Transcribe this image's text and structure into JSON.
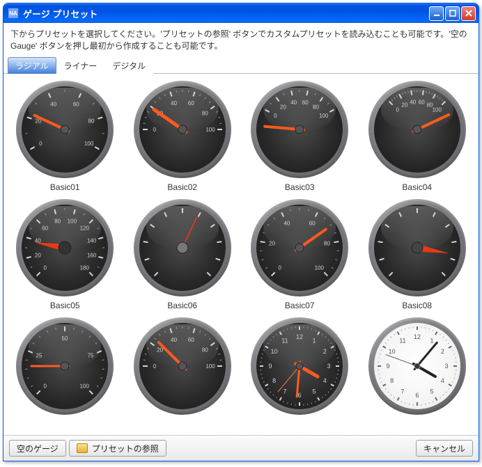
{
  "window": {
    "title": "ゲージ プリセット"
  },
  "instructions": "下からプリセットを選択してください。'プリセットの参照' ボタンでカスタムプリセットを読み込むことも可能です。'空の Gauge' ボタンを押し最初から作成することも可能です。",
  "tabs": [
    {
      "label": "ラジアル",
      "active": true
    },
    {
      "label": "ライナー",
      "active": false
    },
    {
      "label": "デジタル",
      "active": false
    }
  ],
  "buttons": {
    "empty": "空のゲージ",
    "browse": "プリセットの参照",
    "cancel": "キャンセル"
  },
  "colors": {
    "needle": "#ff5a1f",
    "needle2": "#e63a16",
    "tick": "#d6d6d6",
    "tickMinor": "#9a9a9a",
    "tickLabel": "#d0d0d0",
    "hubDark": "#404040",
    "hubLight": "#888888",
    "clockHand": "#222222",
    "clockFace": "#ffffff"
  },
  "presets": [
    {
      "id": "Basic01",
      "label": "Basic01",
      "face": "dark",
      "scale": {
        "start": 150,
        "end": 30,
        "min": 0,
        "max": 100,
        "majorStep": 20,
        "minorPerMajor": 2,
        "labels": true
      },
      "needles": [
        {
          "angle": 205,
          "len": 48,
          "width": 4,
          "color": "#ff5a1f"
        }
      ],
      "hub": {
        "r": 6,
        "fill": "#555"
      }
    },
    {
      "id": "Basic02",
      "label": "Basic02",
      "face": "dark",
      "scale": {
        "start": 180,
        "end": 0,
        "min": 0,
        "max": 100,
        "majorStep": 20,
        "minorPerMajor": 4,
        "labels": true
      },
      "needles": [
        {
          "angle": 215,
          "len": 50,
          "width": 5,
          "color": "#ff5a1f"
        }
      ],
      "hub": {
        "r": 6,
        "fill": "#555"
      }
    },
    {
      "id": "Basic03",
      "label": "Basic03",
      "face": "dark",
      "scale": {
        "start": 210,
        "end": 330,
        "min": 0,
        "max": 100,
        "majorStep": 20,
        "minorPerMajor": 2,
        "labels": true
      },
      "needles": [
        {
          "angle": 185,
          "len": 50,
          "width": 4,
          "color": "#ff5a1f"
        }
      ],
      "hub": {
        "r": 6,
        "fill": "#555"
      }
    },
    {
      "id": "Basic04",
      "label": "Basic04",
      "face": "dark",
      "scale": {
        "start": 225,
        "end": 315,
        "min": 0,
        "max": 100,
        "majorStep": 20,
        "minorPerMajor": 4,
        "labels": true
      },
      "needles": [
        {
          "angle": 335,
          "len": 50,
          "width": 4,
          "color": "#ff5a1f"
        }
      ],
      "hub": {
        "r": 6,
        "fill": "#555"
      }
    },
    {
      "id": "Basic05",
      "label": "Basic05",
      "face": "dark",
      "scale": {
        "start": 135,
        "end": 45,
        "min": 0,
        "max": 180,
        "majorStep": 20,
        "minorPerMajor": 2,
        "labels": true
      },
      "needles": [
        {
          "angle": 190,
          "len": 44,
          "width": 8,
          "color": "#e63a16",
          "style": "wedge"
        }
      ],
      "hub": {
        "r": 9,
        "fill": "#333"
      }
    },
    {
      "id": "Basic06",
      "label": "Basic06",
      "face": "dark",
      "scale": {
        "start": 135,
        "end": 45,
        "min": 0,
        "max": 100,
        "majorStep": 10,
        "minorPerMajor": 1,
        "labels": false
      },
      "needles": [
        {
          "angle": 295,
          "len": 48,
          "width": 2,
          "color": "#d43a1f"
        }
      ],
      "hub": {
        "r": 8,
        "fill": "#777"
      }
    },
    {
      "id": "Basic07",
      "label": "Basic07",
      "face": "dark",
      "scale": {
        "start": 135,
        "end": 45,
        "min": 0,
        "max": 100,
        "majorStep": 20,
        "minorPerMajor": 4,
        "labels": true
      },
      "needles": [
        {
          "angle": 325,
          "len": 46,
          "width": 4,
          "color": "#ff5a1f"
        }
      ],
      "hub": {
        "r": 6,
        "fill": "#555"
      }
    },
    {
      "id": "Basic08",
      "label": "Basic08",
      "face": "dark",
      "scale": {
        "start": 135,
        "end": 45,
        "min": 0,
        "max": 100,
        "majorStep": 10,
        "minorPerMajor": 1,
        "labels": false
      },
      "needles": [
        {
          "angle": 10,
          "len": 46,
          "width": 10,
          "color": "#e63a16",
          "style": "wedge"
        }
      ],
      "hub": {
        "r": 8,
        "fill": "#444"
      }
    },
    {
      "id": "Basic09",
      "label": "",
      "face": "dark",
      "scale": {
        "start": 135,
        "end": 45,
        "min": 0,
        "max": 100,
        "majorStep": 25,
        "minorPerMajor": 5,
        "labels": true
      },
      "needles": [
        {
          "angle": 180,
          "len": 48,
          "width": 3,
          "color": "#ff5a1f"
        }
      ],
      "hub": {
        "r": 6,
        "fill": "#555"
      }
    },
    {
      "id": "Basic10",
      "label": "",
      "face": "dark",
      "scale": {
        "start": 180,
        "end": 0,
        "min": 0,
        "max": 100,
        "majorStep": 20,
        "minorPerMajor": 4,
        "labels": true
      },
      "needles": [
        {
          "angle": 225,
          "len": 48,
          "width": 4,
          "color": "#ff5a1f"
        }
      ],
      "hub": {
        "r": 6,
        "fill": "#555"
      }
    },
    {
      "id": "Clock01",
      "label": "",
      "face": "dark",
      "clock": true,
      "scale": {
        "start": 270,
        "end": 630,
        "min": 12,
        "max": 12,
        "majorStep": 1,
        "minorPerMajor": 5,
        "labels": true,
        "clockNums": true
      },
      "needles": [
        {
          "angle": 30,
          "len": 30,
          "width": 5,
          "color": "#ff5a1f"
        },
        {
          "angle": 95,
          "len": 44,
          "width": 3,
          "color": "#ff5a1f"
        },
        {
          "angle": 130,
          "len": 48,
          "width": 1,
          "color": "#ff7a3f"
        }
      ],
      "hub": {
        "r": 5,
        "fill": "#555"
      }
    },
    {
      "id": "Clock02",
      "label": "",
      "face": "light",
      "clock": true,
      "scale": {
        "start": 270,
        "end": 630,
        "min": 12,
        "max": 12,
        "majorStep": 1,
        "minorPerMajor": 5,
        "labels": true,
        "clockNums": true
      },
      "needles": [
        {
          "angle": 30,
          "len": 30,
          "width": 4,
          "color": "#222222"
        },
        {
          "angle": 310,
          "len": 44,
          "width": 3,
          "color": "#222222"
        },
        {
          "angle": 200,
          "len": 48,
          "width": 1,
          "color": "#555555"
        }
      ],
      "hub": {
        "r": 4,
        "fill": "#333"
      }
    }
  ]
}
